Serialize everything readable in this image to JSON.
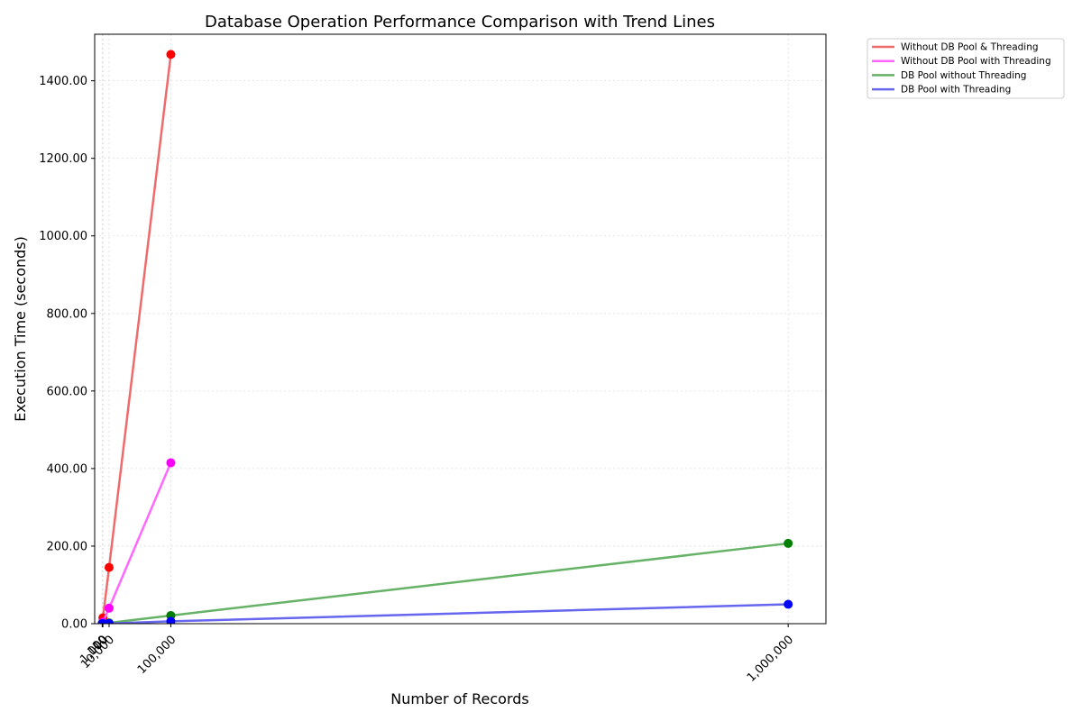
{
  "chart_data": {
    "type": "line",
    "title": "Database Operation Performance Comparison with Trend Lines",
    "xlabel": "Number of Records",
    "ylabel": "Execution Time (seconds)",
    "xlim": [
      -11000,
      1055000
    ],
    "ylim": [
      0,
      1520
    ],
    "x_ticks": [
      {
        "value": 10,
        "label": "10"
      },
      {
        "value": 100,
        "label": "100"
      },
      {
        "value": 1000,
        "label": "1,000"
      },
      {
        "value": 10000,
        "label": "10,000"
      },
      {
        "value": 100000,
        "label": "100,000"
      },
      {
        "value": 1000000,
        "label": "1,000,000"
      }
    ],
    "y_ticks": [
      {
        "value": 0,
        "label": "0.00"
      },
      {
        "value": 200,
        "label": "200.00"
      },
      {
        "value": 400,
        "label": "400.00"
      },
      {
        "value": 600,
        "label": "600.00"
      },
      {
        "value": 800,
        "label": "800.00"
      },
      {
        "value": 1000,
        "label": "1000.00"
      },
      {
        "value": 1200,
        "label": "1200.00"
      },
      {
        "value": 1400,
        "label": "1400.00"
      }
    ],
    "grid": true,
    "legend_position": "outside top-right",
    "series": [
      {
        "name": "Without DB Pool & Threading",
        "line_color": "#ef6a6a",
        "marker_color": "#ff0000",
        "x": [
          10,
          100,
          1000,
          10000,
          100000
        ],
        "y": [
          0.15,
          1.5,
          15,
          145,
          1468
        ]
      },
      {
        "name": "Without DB Pool with Threading",
        "line_color": "#ff66ff",
        "marker_color": "#ff00ff",
        "x": [
          10,
          100,
          1000,
          10000,
          100000
        ],
        "y": [
          0.04,
          0.4,
          4,
          40,
          415
        ]
      },
      {
        "name": "DB Pool without Threading",
        "line_color": "#66b266",
        "marker_color": "#008000",
        "x": [
          10,
          100,
          1000,
          10000,
          100000,
          1000000
        ],
        "y": [
          0.02,
          0.2,
          0.4,
          2,
          21,
          207
        ]
      },
      {
        "name": "DB Pool with Threading",
        "line_color": "#6666ee",
        "marker_color": "#0000ff",
        "x": [
          10,
          100,
          1000,
          10000,
          100000,
          1000000
        ],
        "y": [
          0.01,
          0.05,
          0.1,
          0.5,
          6,
          50
        ]
      }
    ]
  }
}
